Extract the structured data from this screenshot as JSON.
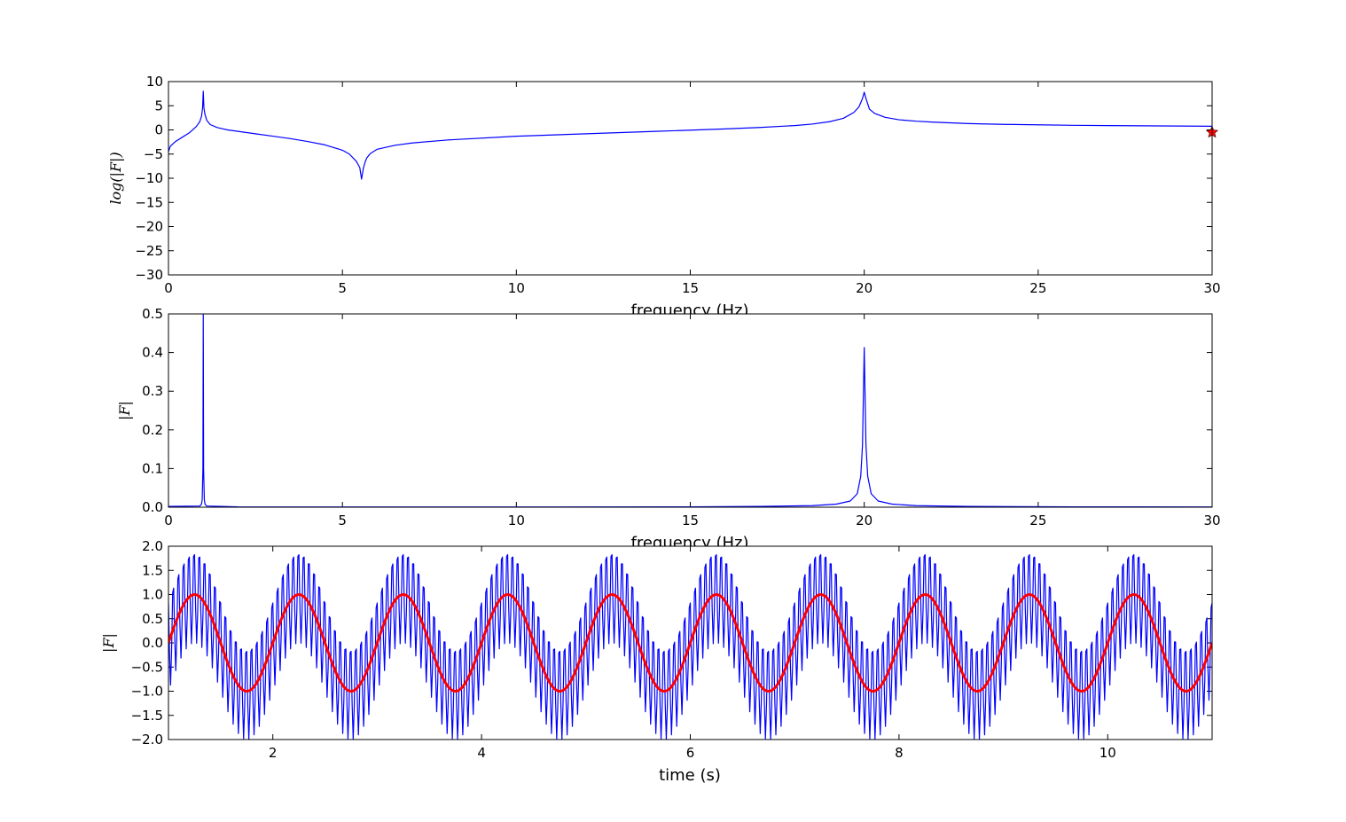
{
  "chart_data": [
    {
      "type": "line",
      "xlabel": "frequency (Hz)",
      "ylabel": "log(|F|)",
      "xlim": [
        0,
        30
      ],
      "ylim": [
        -30,
        10
      ],
      "xticks": [
        "0",
        "5",
        "10",
        "15",
        "20",
        "25",
        "30"
      ],
      "yticks": [
        "10",
        "5",
        "0",
        "−5",
        "−10",
        "−15",
        "−20",
        "−25",
        "−30"
      ],
      "grid": false,
      "series": [
        {
          "color": "#0000ff",
          "x": [
            0,
            0.05,
            0.2,
            0.4,
            0.6,
            0.8,
            0.9,
            0.95,
            0.98,
            1.0,
            1.02,
            1.05,
            1.1,
            1.2,
            1.4,
            1.7,
            2.0,
            2.5,
            3.0,
            3.5,
            4.0,
            4.5,
            5.0,
            5.2,
            5.4,
            5.5,
            5.55,
            5.6,
            5.65,
            5.7,
            5.8,
            6.0,
            6.5,
            7.0,
            8.0,
            10.0,
            12.0,
            14.0,
            16.0,
            17.0,
            18.0,
            18.5,
            19.0,
            19.4,
            19.7,
            19.85,
            19.95,
            20.0,
            20.05,
            20.15,
            20.3,
            20.6,
            21.0,
            21.5,
            22.0,
            23.0,
            24.0,
            25.0,
            26.0,
            27.0,
            28.0,
            29.0,
            30.0
          ],
          "y": [
            -4.5,
            -3.4,
            -2.4,
            -1.5,
            -0.6,
            0.7,
            1.7,
            2.8,
            4.5,
            8.0,
            4.5,
            3.2,
            2.0,
            1.1,
            0.5,
            0.0,
            -0.3,
            -0.8,
            -1.3,
            -1.8,
            -2.4,
            -3.1,
            -4.2,
            -5.0,
            -6.5,
            -7.8,
            -10.2,
            -8.0,
            -6.7,
            -5.8,
            -4.9,
            -4.0,
            -3.2,
            -2.7,
            -2.1,
            -1.3,
            -0.8,
            -0.3,
            0.2,
            0.5,
            0.9,
            1.2,
            1.7,
            2.4,
            3.6,
            4.8,
            6.5,
            7.8,
            6.5,
            4.3,
            3.4,
            2.6,
            2.1,
            1.8,
            1.6,
            1.3,
            1.15,
            1.05,
            0.95,
            0.9,
            0.85,
            0.8,
            0.75
          ]
        }
      ],
      "marker": {
        "x": 30,
        "y": -0.5,
        "color": "#ff0000",
        "symbol": "star"
      }
    },
    {
      "type": "line",
      "xlabel": "frequency (Hz)",
      "ylabel": "|F|",
      "xlim": [
        0,
        30
      ],
      "ylim": [
        0,
        0.5
      ],
      "xticks": [
        "0",
        "5",
        "10",
        "15",
        "20",
        "25",
        "30"
      ],
      "yticks": [
        "0.5",
        "0.4",
        "0.3",
        "0.2",
        "0.1",
        "0.0"
      ],
      "grid": false,
      "series": [
        {
          "color": "#0000ff",
          "x": [
            0,
            0.9,
            0.95,
            0.97,
            0.99,
            1.0,
            1.01,
            1.03,
            1.05,
            1.1,
            2.0,
            5.0,
            10.0,
            15.0,
            17.0,
            18.5,
            19.2,
            19.6,
            19.8,
            19.9,
            19.95,
            20.0,
            20.05,
            20.1,
            20.2,
            20.4,
            20.8,
            21.5,
            23.0,
            26.0,
            30.0
          ],
          "y": [
            0.002,
            0.003,
            0.008,
            0.02,
            0.1,
            0.5,
            0.1,
            0.02,
            0.008,
            0.003,
            0.001,
            0.0005,
            0.0005,
            0.001,
            0.002,
            0.004,
            0.008,
            0.016,
            0.035,
            0.08,
            0.16,
            0.413,
            0.16,
            0.08,
            0.035,
            0.016,
            0.008,
            0.004,
            0.002,
            0.001,
            0.0005
          ]
        }
      ]
    },
    {
      "type": "line",
      "xlabel": "time (s)",
      "ylabel": "|F|",
      "xlim": [
        1,
        11
      ],
      "ylim": [
        -2,
        2
      ],
      "xticks": [
        "2",
        "4",
        "6",
        "8",
        "10"
      ],
      "yticks": [
        "2.0",
        "1.5",
        "1.0",
        "0.5",
        "0.0",
        "−0.5",
        "−1.0",
        "−1.5",
        "−2.0"
      ],
      "grid": false,
      "series": [
        {
          "color": "#0000ff",
          "function": "sin(2*pi*1*t) + cos(2*pi*20*t)",
          "samples_per_second": 100
        },
        {
          "color": "#ff0000",
          "function": "sin(2*pi*1*t)"
        }
      ]
    }
  ]
}
